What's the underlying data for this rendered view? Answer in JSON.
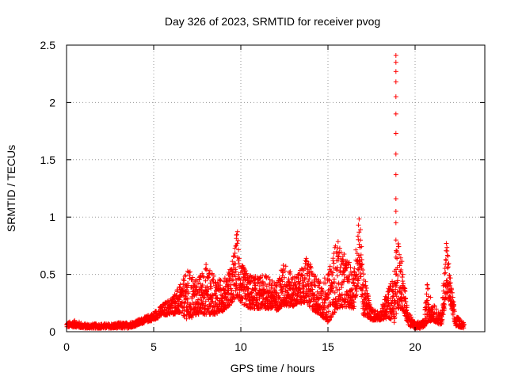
{
  "chart_data": {
    "type": "scatter",
    "title": "Day 326 of 2023, SRMTID for receiver pvog",
    "xlabel": "GPS time / hours",
    "ylabel": "SRMTID / TECUs",
    "xlim": [
      0,
      24
    ],
    "ylim": [
      0,
      2.5
    ],
    "x_ticks": [
      "0",
      "5",
      "10",
      "15",
      "20"
    ],
    "y_ticks": [
      "0",
      "0.5",
      "1",
      "1.5",
      "2",
      "2.5"
    ],
    "grid": true,
    "marker": "+",
    "color": "#ff0000",
    "envelope": [
      [
        0.0,
        0.04,
        0.08
      ],
      [
        0.5,
        0.04,
        0.1
      ],
      [
        1.0,
        0.03,
        0.07
      ],
      [
        1.5,
        0.03,
        0.07
      ],
      [
        2.0,
        0.03,
        0.07
      ],
      [
        2.5,
        0.03,
        0.07
      ],
      [
        3.0,
        0.03,
        0.08
      ],
      [
        3.5,
        0.03,
        0.08
      ],
      [
        4.0,
        0.05,
        0.1
      ],
      [
        4.5,
        0.08,
        0.13
      ],
      [
        5.0,
        0.1,
        0.17
      ],
      [
        5.5,
        0.14,
        0.24
      ],
      [
        6.0,
        0.15,
        0.3
      ],
      [
        6.5,
        0.16,
        0.4
      ],
      [
        7.0,
        0.1,
        0.55
      ],
      [
        7.5,
        0.15,
        0.45
      ],
      [
        8.0,
        0.15,
        0.6
      ],
      [
        8.5,
        0.15,
        0.48
      ],
      [
        9.0,
        0.18,
        0.45
      ],
      [
        9.5,
        0.25,
        0.6
      ],
      [
        9.8,
        0.3,
        0.9
      ],
      [
        10.0,
        0.25,
        0.6
      ],
      [
        10.5,
        0.2,
        0.5
      ],
      [
        11.0,
        0.2,
        0.48
      ],
      [
        11.5,
        0.2,
        0.5
      ],
      [
        12.0,
        0.18,
        0.42
      ],
      [
        12.5,
        0.22,
        0.62
      ],
      [
        13.0,
        0.22,
        0.48
      ],
      [
        13.5,
        0.25,
        0.55
      ],
      [
        13.8,
        0.25,
        0.68
      ],
      [
        14.0,
        0.2,
        0.58
      ],
      [
        14.5,
        0.15,
        0.45
      ],
      [
        15.0,
        0.08,
        0.5
      ],
      [
        15.5,
        0.2,
        0.82
      ],
      [
        16.0,
        0.22,
        0.65
      ],
      [
        16.5,
        0.2,
        0.55
      ],
      [
        16.8,
        0.5,
        1.1
      ],
      [
        17.0,
        0.15,
        0.55
      ],
      [
        17.5,
        0.1,
        0.2
      ],
      [
        18.0,
        0.1,
        0.18
      ],
      [
        18.5,
        0.12,
        0.4
      ],
      [
        18.8,
        0.08,
        0.5
      ],
      [
        19.0,
        0.2,
        0.9
      ],
      [
        19.3,
        0.2,
        0.55
      ],
      [
        19.6,
        0.05,
        0.18
      ],
      [
        20.0,
        0.03,
        0.08
      ],
      [
        20.5,
        0.03,
        0.1
      ],
      [
        20.7,
        0.08,
        0.42
      ],
      [
        21.0,
        0.1,
        0.25
      ],
      [
        21.5,
        0.05,
        0.15
      ],
      [
        21.8,
        0.3,
        0.83
      ],
      [
        22.0,
        0.25,
        0.5
      ],
      [
        22.3,
        0.05,
        0.15
      ],
      [
        22.8,
        0.03,
        0.08
      ]
    ],
    "spikes": [
      [
        18.9,
        0.5
      ],
      [
        18.9,
        0.65
      ],
      [
        18.9,
        0.8
      ],
      [
        18.9,
        0.95
      ],
      [
        18.9,
        1.05
      ],
      [
        18.9,
        1.16
      ],
      [
        18.9,
        1.37
      ],
      [
        18.9,
        1.55
      ],
      [
        18.9,
        1.73
      ],
      [
        18.9,
        1.9
      ],
      [
        18.9,
        2.05
      ],
      [
        18.9,
        2.18
      ],
      [
        18.9,
        2.27
      ],
      [
        18.9,
        2.35
      ],
      [
        18.9,
        2.41
      ]
    ]
  }
}
